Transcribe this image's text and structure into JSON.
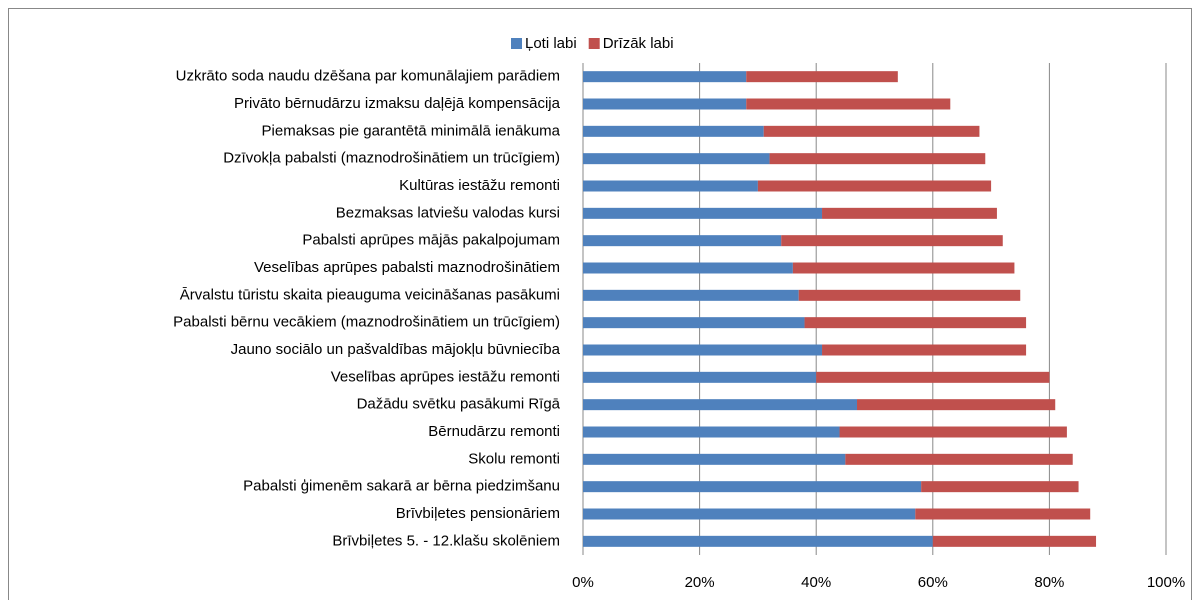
{
  "chart_data": {
    "type": "stacked-bar-horizontal",
    "categories": [
      "Uzkrāto soda naudu dzēšana par komunālajiem parādiem",
      "Privāto bērnudārzu izmaksu daļējā kompensācija",
      "Piemaksas pie garantētā minimālā ienākuma",
      "Dzīvokļa pabalsti  (maznodrošinātiem un trūcīgiem)",
      "Kultūras iestāžu remonti",
      "Bezmaksas latviešu valodas kursi",
      "Pabalsti aprūpes mājās pakalpojumam",
      "Veselības aprūpes pabalsti maznodrošinātiem",
      "Ārvalstu tūristu skaita pieauguma veicināšanas pasākumi",
      "Pabalsti bērnu vecākiem (maznodrošinātiem un trūcīgiem)",
      "Jauno sociālo un pašvaldības mājokļu būvniecība",
      "Veselības aprūpes iestāžu remonti",
      "Dažādu svētku pasākumi Rīgā",
      "Bērnudārzu remonti",
      "Skolu remonti",
      "Pabalsti ģimenēm sakarā ar bērna piedzimšanu",
      "Brīvbiļetes pensionāriem",
      "Brīvbiļetes 5. - 12.klašu skolēniem"
    ],
    "series": [
      {
        "name": "Ļoti labi",
        "color": "#4f81bd",
        "values": [
          28,
          28,
          31,
          32,
          30,
          41,
          34,
          36,
          37,
          38,
          41,
          40,
          47,
          44,
          45,
          58,
          57,
          60
        ]
      },
      {
        "name": "Drīzāk labi",
        "color": "#c0504d",
        "values": [
          26,
          35,
          37,
          37,
          40,
          30,
          38,
          38,
          38,
          38,
          35,
          40,
          34,
          39,
          39,
          27,
          30,
          28
        ]
      }
    ],
    "xlim": [
      0,
      100
    ],
    "xticks": [
      {
        "value": 0,
        "label": "0%"
      },
      {
        "value": 20,
        "label": "20%"
      },
      {
        "value": 40,
        "label": "40%"
      },
      {
        "value": 60,
        "label": "60%"
      },
      {
        "value": 80,
        "label": "80%"
      },
      {
        "value": 100,
        "label": "100%"
      }
    ],
    "grid": true,
    "legend": "top"
  }
}
